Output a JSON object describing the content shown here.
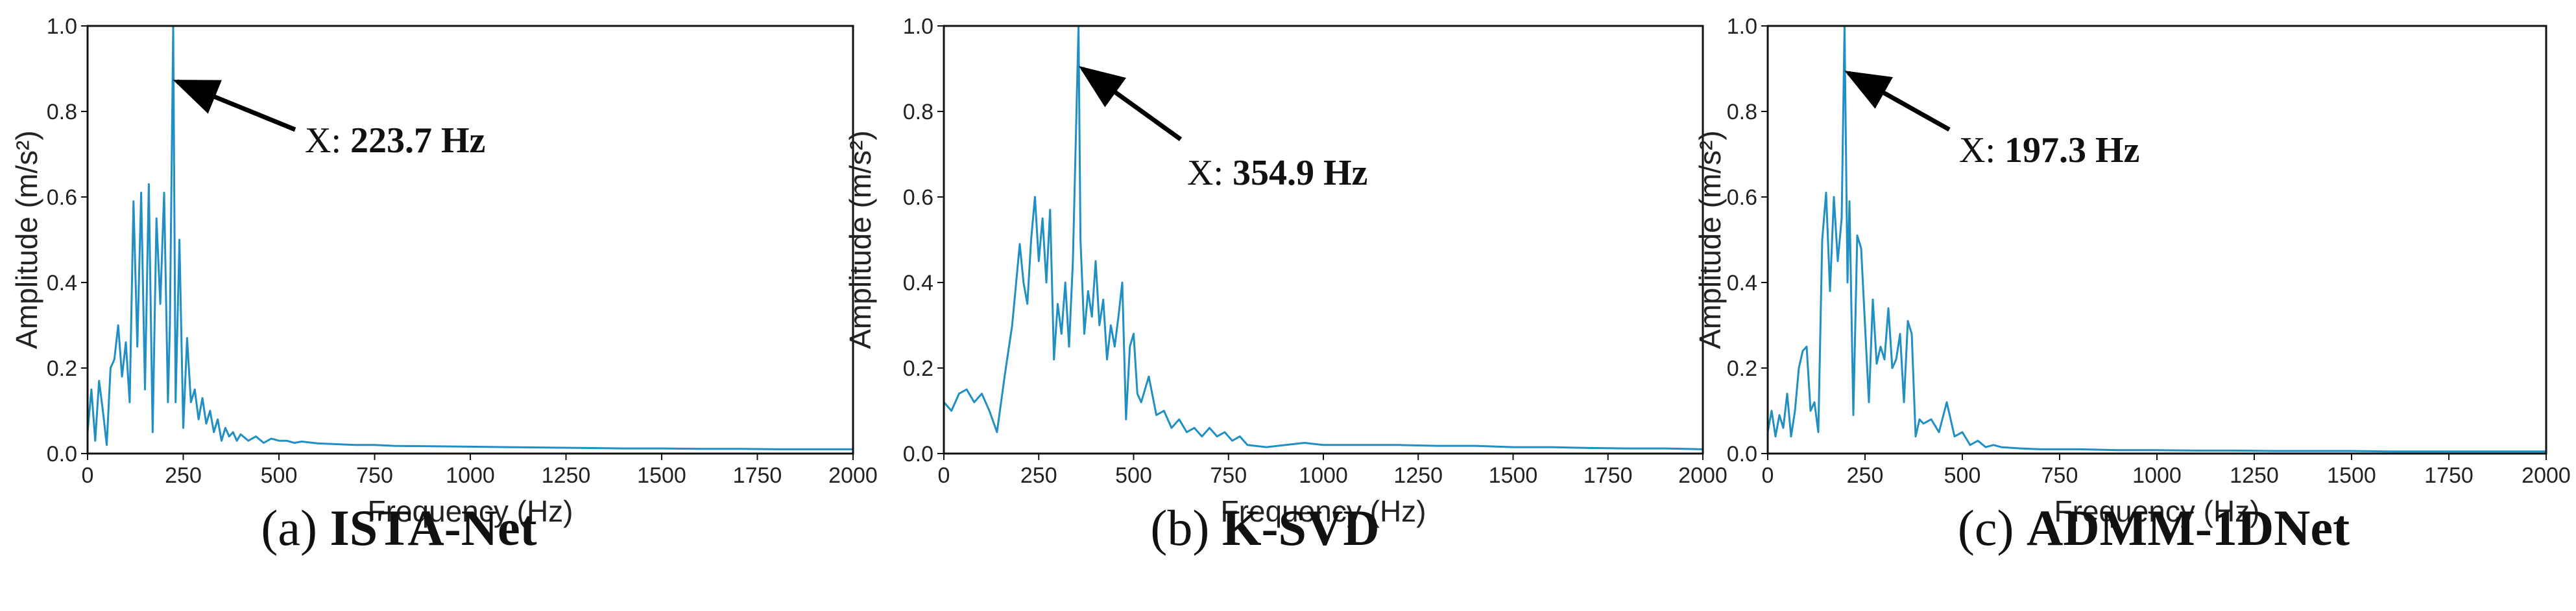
{
  "chart_data": [
    {
      "type": "line",
      "caption_prefix": "(a)",
      "caption_bold": "ISTA-Net",
      "xlabel": "Frequency (Hz)",
      "ylabel": "Amplitude (m/s²)",
      "xlim": [
        0,
        2000
      ],
      "ylim": [
        0,
        1.0
      ],
      "xticks": [
        "0",
        "250",
        "500",
        "750",
        "1000",
        "1250",
        "1500",
        "1750",
        "2000"
      ],
      "yticks": [
        "0.0",
        "0.2",
        "0.4",
        "0.6",
        "0.8",
        "1.0"
      ],
      "annotation": {
        "label": "X: ",
        "value": "223.7 Hz",
        "peak_x": 223.7,
        "peak_y": 1.0,
        "arrow_tip_y": 0.87
      },
      "series": [
        {
          "name": "spectrum",
          "x": [
            0,
            10,
            20,
            30,
            40,
            50,
            60,
            70,
            80,
            90,
            100,
            110,
            120,
            130,
            140,
            150,
            160,
            170,
            180,
            190,
            200,
            210,
            215,
            223.7,
            230,
            240,
            250,
            260,
            270,
            280,
            290,
            300,
            310,
            320,
            330,
            340,
            350,
            360,
            370,
            380,
            390,
            400,
            420,
            440,
            460,
            480,
            500,
            520,
            540,
            560,
            600,
            650,
            700,
            750,
            800,
            900,
            1000,
            1100,
            1200,
            1300,
            1400,
            1500,
            1600,
            1700,
            1800,
            1900,
            2000
          ],
          "values": [
            0.05,
            0.15,
            0.03,
            0.17,
            0.1,
            0.02,
            0.2,
            0.22,
            0.3,
            0.18,
            0.26,
            0.12,
            0.59,
            0.25,
            0.61,
            0.15,
            0.63,
            0.05,
            0.55,
            0.35,
            0.61,
            0.12,
            0.3,
            1.0,
            0.12,
            0.5,
            0.06,
            0.27,
            0.12,
            0.15,
            0.08,
            0.13,
            0.07,
            0.1,
            0.05,
            0.08,
            0.03,
            0.06,
            0.04,
            0.05,
            0.03,
            0.045,
            0.03,
            0.04,
            0.025,
            0.035,
            0.03,
            0.03,
            0.025,
            0.028,
            0.024,
            0.022,
            0.02,
            0.02,
            0.018,
            0.017,
            0.016,
            0.015,
            0.014,
            0.013,
            0.012,
            0.012,
            0.011,
            0.011,
            0.01,
            0.01,
            0.01
          ]
        }
      ]
    },
    {
      "type": "line",
      "caption_prefix": "(b)",
      "caption_bold": "K-SVD",
      "xlabel": "Frequency (Hz)",
      "ylabel": "Amplitude (m/s²)",
      "xlim": [
        0,
        2000
      ],
      "ylim": [
        0,
        1.0
      ],
      "xticks": [
        "0",
        "250",
        "500",
        "750",
        "1000",
        "1250",
        "1500",
        "1750",
        "2000"
      ],
      "yticks": [
        "0.0",
        "0.2",
        "0.4",
        "0.6",
        "0.8",
        "1.0"
      ],
      "annotation": {
        "label": "X: ",
        "value": "354.9 Hz",
        "peak_x": 354.9,
        "peak_y": 1.0,
        "arrow_tip_y": 0.9
      },
      "series": [
        {
          "name": "spectrum",
          "x": [
            0,
            20,
            40,
            60,
            80,
            100,
            120,
            140,
            160,
            180,
            200,
            210,
            220,
            230,
            240,
            250,
            260,
            270,
            280,
            290,
            300,
            310,
            320,
            330,
            340,
            354.9,
            360,
            370,
            380,
            390,
            400,
            410,
            420,
            430,
            440,
            450,
            460,
            470,
            480,
            490,
            500,
            510,
            520,
            540,
            560,
            580,
            600,
            620,
            640,
            660,
            680,
            700,
            720,
            740,
            760,
            780,
            800,
            850,
            900,
            950,
            1000,
            1100,
            1200,
            1300,
            1400,
            1500,
            1600,
            1700,
            1800,
            1900,
            2000
          ],
          "values": [
            0.12,
            0.1,
            0.14,
            0.15,
            0.12,
            0.14,
            0.1,
            0.05,
            0.18,
            0.3,
            0.49,
            0.4,
            0.35,
            0.5,
            0.6,
            0.45,
            0.55,
            0.4,
            0.57,
            0.22,
            0.35,
            0.28,
            0.4,
            0.25,
            0.45,
            1.0,
            0.5,
            0.28,
            0.38,
            0.32,
            0.45,
            0.3,
            0.36,
            0.22,
            0.3,
            0.25,
            0.32,
            0.4,
            0.08,
            0.25,
            0.28,
            0.14,
            0.12,
            0.18,
            0.09,
            0.1,
            0.06,
            0.08,
            0.05,
            0.06,
            0.04,
            0.06,
            0.04,
            0.05,
            0.03,
            0.04,
            0.02,
            0.015,
            0.02,
            0.025,
            0.02,
            0.02,
            0.02,
            0.018,
            0.018,
            0.015,
            0.015,
            0.013,
            0.012,
            0.012,
            0.01
          ]
        }
      ]
    },
    {
      "type": "line",
      "caption_prefix": "(c)",
      "caption_bold": "ADMM-1DNet",
      "xlabel": "Frequency (Hz)",
      "ylabel": "Amplitude (m/s²)",
      "xlim": [
        0,
        2000
      ],
      "ylim": [
        0,
        1.0
      ],
      "xticks": [
        "0",
        "250",
        "500",
        "750",
        "1000",
        "1250",
        "1500",
        "1750",
        "2000"
      ],
      "yticks": [
        "0.0",
        "0.2",
        "0.4",
        "0.6",
        "0.8",
        "1.0"
      ],
      "annotation": {
        "label": "X: ",
        "value": "197.3 Hz",
        "peak_x": 197.3,
        "peak_y": 1.0,
        "arrow_tip_y": 0.89
      },
      "series": [
        {
          "name": "spectrum",
          "x": [
            0,
            10,
            20,
            30,
            40,
            50,
            60,
            70,
            80,
            90,
            100,
            110,
            120,
            130,
            140,
            150,
            160,
            170,
            180,
            190,
            197.3,
            205,
            210,
            220,
            230,
            240,
            250,
            260,
            270,
            280,
            290,
            300,
            310,
            320,
            330,
            340,
            350,
            360,
            370,
            380,
            390,
            400,
            420,
            440,
            460,
            480,
            500,
            520,
            540,
            560,
            580,
            600,
            650,
            700,
            800,
            900,
            1000,
            1100,
            1200,
            1300,
            1400,
            1500,
            1600,
            1700,
            1800,
            1900,
            2000
          ],
          "values": [
            0.05,
            0.1,
            0.04,
            0.09,
            0.06,
            0.14,
            0.04,
            0.1,
            0.2,
            0.24,
            0.25,
            0.1,
            0.12,
            0.05,
            0.5,
            0.61,
            0.38,
            0.6,
            0.45,
            0.55,
            1.0,
            0.4,
            0.59,
            0.09,
            0.51,
            0.48,
            0.3,
            0.12,
            0.36,
            0.21,
            0.25,
            0.22,
            0.34,
            0.2,
            0.22,
            0.28,
            0.12,
            0.31,
            0.28,
            0.04,
            0.08,
            0.07,
            0.08,
            0.05,
            0.12,
            0.04,
            0.05,
            0.02,
            0.03,
            0.015,
            0.02,
            0.015,
            0.012,
            0.01,
            0.01,
            0.008,
            0.008,
            0.007,
            0.007,
            0.006,
            0.006,
            0.006,
            0.005,
            0.005,
            0.005,
            0.005,
            0.005
          ]
        }
      ]
    }
  ],
  "colors": {
    "line": "#1f8fc4",
    "axis": "#111111",
    "arrow": "#000000"
  }
}
